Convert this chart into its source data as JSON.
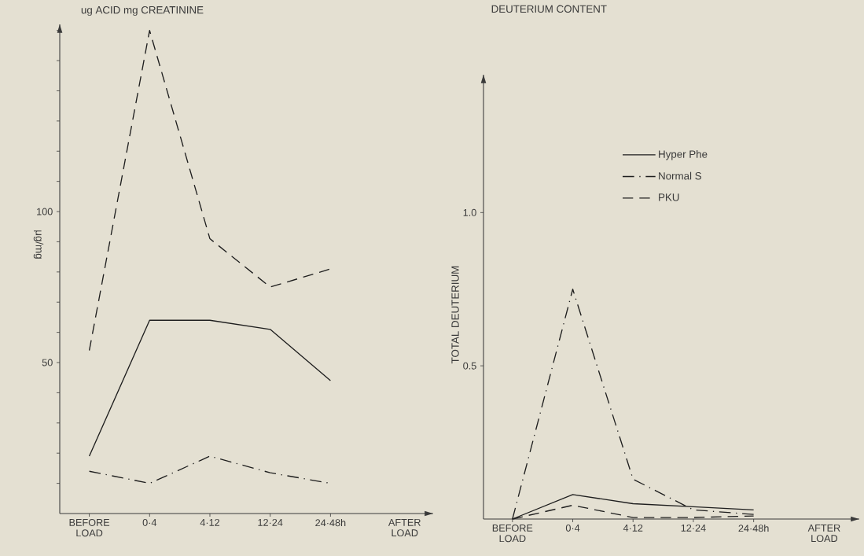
{
  "chart_data": [
    {
      "type": "line",
      "title": "ug ACID  mg CREATININE",
      "ylabel": "μg/mg",
      "xlabel": "AFTER LOAD",
      "categories": [
        "BEFORE LOAD",
        "0·4",
        "4·12",
        "12·24",
        "24·48h"
      ],
      "ylim": [
        0,
        162
      ],
      "yticks": [
        {
          "value": 10,
          "label": null
        },
        {
          "value": 20,
          "label": null
        },
        {
          "value": 30,
          "label": null
        },
        {
          "value": 40,
          "label": null
        },
        50,
        {
          "value": 60,
          "label": null
        },
        {
          "value": 70,
          "label": null
        },
        {
          "value": 80,
          "label": null
        },
        {
          "value": 90,
          "label": null
        },
        100,
        {
          "value": 110,
          "label": null
        },
        {
          "value": 120,
          "label": null
        },
        {
          "value": 130,
          "label": null
        },
        {
          "value": 140,
          "label": null
        },
        {
          "value": 150,
          "label": null
        },
        {
          "value": 160,
          "label": null
        }
      ],
      "series": [
        {
          "color": "#1e1e1e",
          "line_style": "solid",
          "values": [
            19,
            64,
            64,
            61,
            44
          ]
        },
        {
          "color": "#1e1e1e",
          "line_style": "dashdot",
          "values": [
            14,
            10,
            19,
            13.5,
            10
          ]
        },
        {
          "color": "#1e1e1e",
          "line_style": "dashed",
          "values": [
            54,
            160,
            91,
            75,
            81
          ]
        }
      ]
    },
    {
      "type": "line",
      "title": "DEUTERIUM CONTENT",
      "ylabel": "TOTAL DEUTERIUM",
      "xlabel": "AFTER LOAD",
      "categories": [
        "BEFORE LOAD",
        "0·4",
        "4·12",
        "12·24",
        "24·48h"
      ],
      "ylim": [
        0,
        1.45
      ],
      "yticks": [
        {
          "value": 0.5,
          "label": "0.5"
        },
        {
          "value": 1.0,
          "label": "1.0"
        }
      ],
      "legend": "top",
      "series": [
        {
          "name": "Hyper Phe",
          "color": "#1e1e1e",
          "line_style": "solid",
          "values": [
            0,
            0.08,
            0.05,
            0.04,
            0.03
          ]
        },
        {
          "name": "Normal S",
          "color": "#1e1e1e",
          "line_style": "dashdot",
          "values": [
            0,
            0.75,
            0.13,
            0.03,
            0.015
          ]
        },
        {
          "name": "PKU",
          "color": "#1e1e1e",
          "line_style": "dashed",
          "values": [
            0,
            0.045,
            0.005,
            0.005,
            0.01
          ]
        }
      ]
    }
  ]
}
